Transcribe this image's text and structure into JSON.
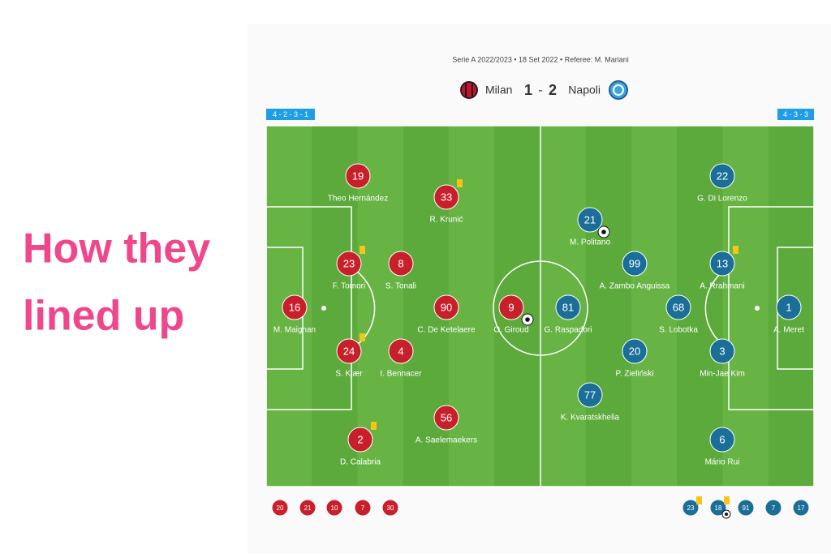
{
  "headline": [
    "How they",
    "lined up"
  ],
  "match_info": "Serie A 2022/2023 • 18 Set 2022 • Referee: M. Mariani",
  "home_team": "Milan",
  "away_team": "Napoli",
  "score": {
    "home": 1,
    "separator": "-",
    "away": 2
  },
  "lineups": [
    {
      "formation": "4 - 2 - 3 - 1",
      "players": [
        {
          "number": 19,
          "name": "Theo Hernández"
        },
        {
          "number": 33,
          "name": "R. Krunić"
        },
        {
          "number": 23,
          "name": "F. Tomori"
        },
        {
          "number": 8,
          "name": "S. Tonali"
        },
        {
          "number": 16,
          "name": "M. Maignan"
        },
        {
          "number": 90,
          "name": "C. De Ketelaere"
        },
        {
          "number": 9,
          "name": "O. Giroud"
        },
        {
          "number": 24,
          "name": "S. Kjær"
        },
        {
          "number": 4,
          "name": "I. Bennacer"
        },
        {
          "number": 2,
          "name": "D. Calabria"
        },
        {
          "number": 56,
          "name": "A. Saelemaekers"
        }
      ],
      "subs": [
        20,
        21,
        10,
        7,
        30
      ]
    },
    {
      "formation": "4 - 3 - 3",
      "players": [
        {
          "number": 22,
          "name": "G. Di Lorenzo"
        },
        {
          "number": 21,
          "name": "M. Politano"
        },
        {
          "number": 99,
          "name": "A. Zambo Anguissa"
        },
        {
          "number": 13,
          "name": "A. Rrahmani"
        },
        {
          "number": 81,
          "name": "G. Raspadori"
        },
        {
          "number": 68,
          "name": "S. Lobotka"
        },
        {
          "number": 1,
          "name": "A. Meret"
        },
        {
          "number": 20,
          "name": "P. Zieliński"
        },
        {
          "number": 3,
          "name": "Min-Jae Kim"
        },
        {
          "number": 77,
          "name": "K. Kvaratskhelia"
        },
        {
          "number": 6,
          "name": "Mário Rui"
        }
      ],
      "subs": [
        23,
        18,
        91,
        7,
        17
      ]
    }
  ]
}
